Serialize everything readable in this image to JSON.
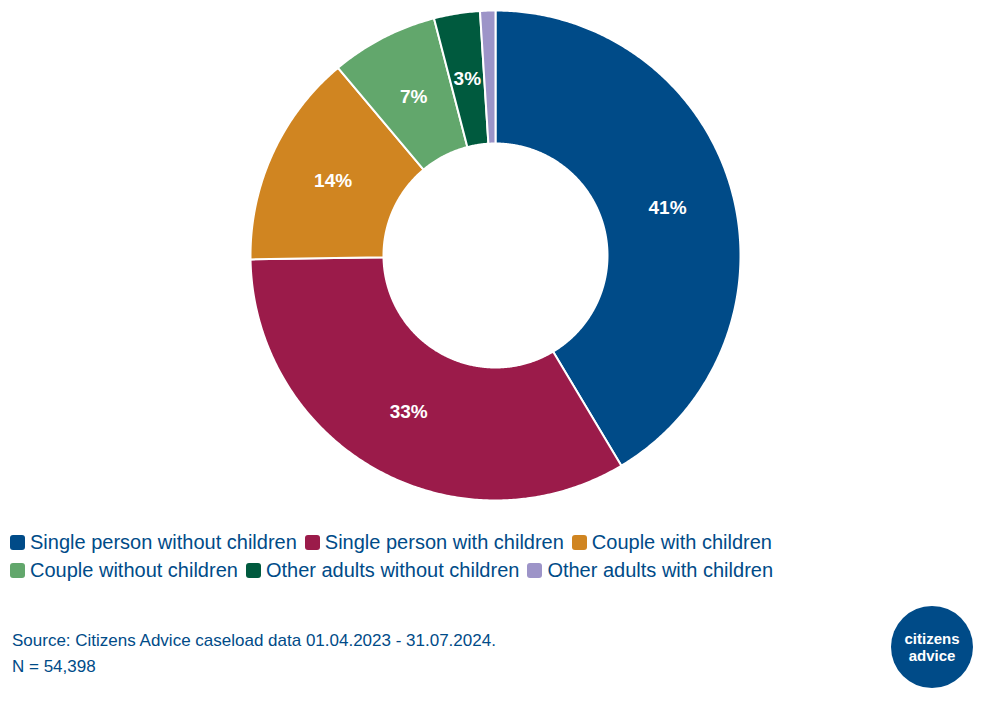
{
  "chart_data": {
    "type": "pie",
    "categories": [
      "Single person without children",
      "Single person with children",
      "Couple with children",
      "Couple without children",
      "Other adults without children",
      "Other adults with children"
    ],
    "values": [
      41,
      33,
      14,
      7,
      3,
      1
    ],
    "value_labels": [
      "41%",
      "33%",
      "14%",
      "7%",
      "3%",
      null
    ],
    "colors": [
      "#004b88",
      "#9b1b4a",
      "#d08521",
      "#62a76c",
      "#005a3e",
      "#9d94c8"
    ],
    "data_labels": true,
    "legend": "bottom",
    "tick_labels": false,
    "caption": [
      "Source: Citizens Advice caseload data 01.04.2023 - 31.07.2024.",
      "N = 54,398"
    ],
    "logo": [
      "citizens",
      "advice"
    ]
  }
}
